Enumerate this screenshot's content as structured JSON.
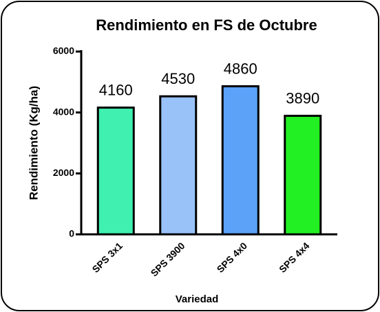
{
  "chart_data": {
    "type": "bar",
    "title": "Rendimiento en FS de Octubre",
    "x_label": "Variedad",
    "y_label": "Rendimiento (Kg/ha)",
    "categories": [
      "SPS 3x1",
      "SPS 3900",
      "SPS 4x0",
      "SPS 4x4"
    ],
    "values": [
      4160,
      4530,
      4860,
      3890
    ],
    "colors": [
      "#40f0b0",
      "#99c2f8",
      "#5ba2f8",
      "#22f022"
    ],
    "ylim": [
      0,
      6000
    ],
    "yticks": [
      0,
      2000,
      4000,
      6000
    ],
    "grid": false
  }
}
